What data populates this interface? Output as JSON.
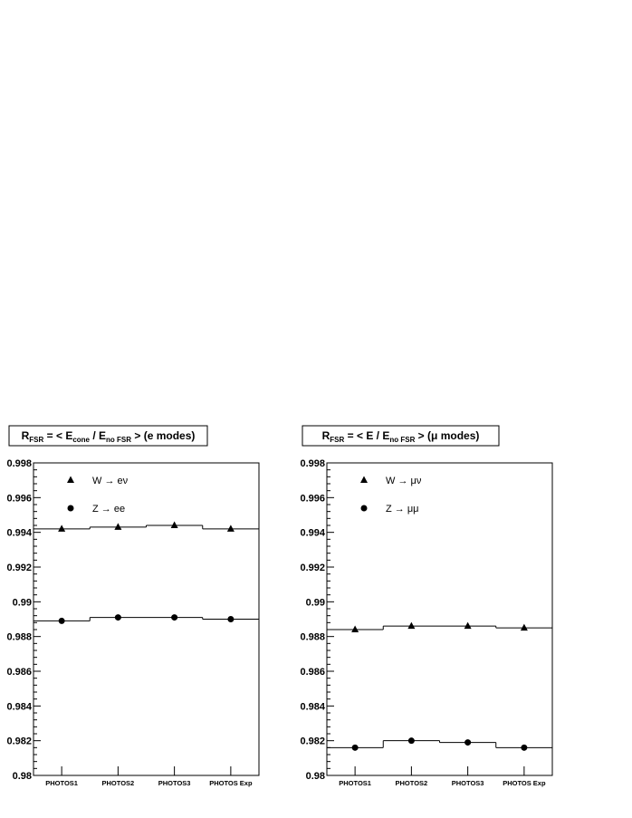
{
  "chart_data": [
    {
      "type": "scatter",
      "title_main": "R",
      "title_main_sub": "FSR",
      "title_mid": " = < E",
      "title_mid_sub": "cone",
      "title_sep": " / E",
      "title_sep_sub": "no FSR",
      "title_end": " > (e modes)",
      "categories": [
        "PHOTOS1",
        "PHOTOS2",
        "PHOTOS3",
        "PHOTOS Exp"
      ],
      "ylim": [
        0.98,
        0.998
      ],
      "yticks": [
        "0.98",
        "0.982",
        "0.984",
        "0.986",
        "0.988",
        "0.99",
        "0.992",
        "0.994",
        "0.996",
        "0.998"
      ],
      "series": [
        {
          "name": "W → eν",
          "marker": "triangle",
          "values": [
            0.9942,
            0.9943,
            0.9944,
            0.9942
          ]
        },
        {
          "name": "Z → ee",
          "marker": "circle",
          "values": [
            0.9889,
            0.9891,
            0.9891,
            0.989
          ]
        }
      ]
    },
    {
      "type": "scatter",
      "title_main": "R",
      "title_main_sub": "FSR",
      "title_mid": " = < E",
      "title_mid_sub": "",
      "title_sep": " / E",
      "title_sep_sub": "no FSR",
      "title_end": " > (μ modes)",
      "categories": [
        "PHOTOS1",
        "PHOTOS2",
        "PHOTOS3",
        "PHOTOS Exp"
      ],
      "ylim": [
        0.98,
        0.998
      ],
      "yticks": [
        "0.98",
        "0.982",
        "0.984",
        "0.986",
        "0.988",
        "0.99",
        "0.992",
        "0.994",
        "0.996",
        "0.998"
      ],
      "series": [
        {
          "name": "W → μν",
          "marker": "triangle",
          "values": [
            0.9884,
            0.9886,
            0.9886,
            0.9885
          ]
        },
        {
          "name": "Z → μμ",
          "marker": "circle",
          "values": [
            0.9816,
            0.982,
            0.9819,
            0.9816
          ]
        }
      ]
    }
  ]
}
